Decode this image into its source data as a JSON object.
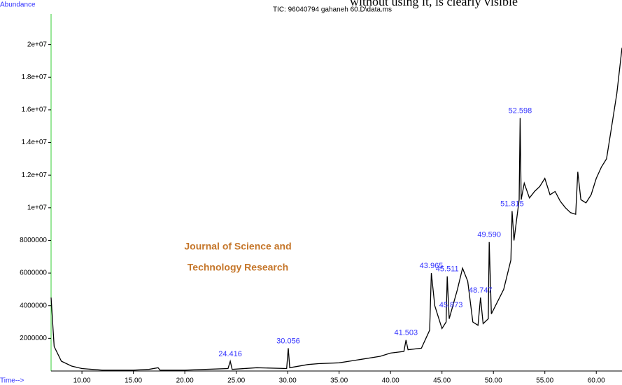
{
  "chart_data": {
    "type": "line",
    "title": "TIC: 96040794 gahaneh 60.D\\data.ms",
    "y_label": "Abundance",
    "x_label": "Time-->",
    "top_text": "without using it, is clearly visible",
    "watermark": [
      "Journal of Science and",
      "Technology Research"
    ],
    "color": "#000000",
    "xlim": [
      7.0,
      62.5
    ],
    "ylim": [
      0,
      22000000
    ],
    "xticks": [
      {
        "value": 10,
        "label": "10.00"
      },
      {
        "value": 15,
        "label": "15.00"
      },
      {
        "value": 20,
        "label": "20.00"
      },
      {
        "value": 25,
        "label": "25.00"
      },
      {
        "value": 30,
        "label": "30.00"
      },
      {
        "value": 35,
        "label": "35.00"
      },
      {
        "value": 40,
        "label": "40.00"
      },
      {
        "value": 45,
        "label": "45.00"
      },
      {
        "value": 50,
        "label": "50.00"
      },
      {
        "value": 55,
        "label": "55.00"
      },
      {
        "value": 60,
        "label": "60.00"
      }
    ],
    "yticks": [
      2000000,
      4000000,
      6000000,
      8000000,
      {
        "value": 10000000,
        "label": "1e+07"
      },
      {
        "value": 12000000,
        "label": "1.2e+07"
      },
      {
        "value": 14000000,
        "label": "1.4e+07"
      },
      {
        "value": 16000000,
        "label": "1.6e+07"
      },
      {
        "value": 18000000,
        "label": "1.8e+07"
      },
      {
        "value": 20000000,
        "label": "2e+07"
      }
    ],
    "x": [
      7.0,
      7.3,
      8,
      9,
      10,
      11,
      12,
      15,
      16.5,
      17.4,
      17.6,
      20,
      22,
      24.2,
      24.416,
      24.6,
      27,
      29.9,
      30.056,
      30.2,
      32,
      33,
      35,
      37,
      39,
      40,
      41.3,
      41.503,
      41.7,
      43,
      43.8,
      43.965,
      44.3,
      45.0,
      45.4,
      45.511,
      45.7,
      46.5,
      47.0,
      47.5,
      48.0,
      48.5,
      48.747,
      49.0,
      49.5,
      49.59,
      49.8,
      51,
      51.7,
      51.815,
      52.0,
      52.5,
      52.598,
      52.7,
      53.0,
      53.5,
      54.0,
      54.5,
      55.0,
      55.5,
      56.0,
      56.5,
      57.0,
      57.5,
      58.0,
      58.2,
      58.5,
      59.0,
      59.5,
      60.0,
      60.5,
      61.0,
      61.5,
      62.0,
      62.5
    ],
    "values": [
      4500000,
      1500000,
      600000,
      300000,
      150000,
      100000,
      50000,
      50000,
      100000,
      200000,
      50000,
      50000,
      100000,
      150000,
      600000,
      100000,
      200000,
      150000,
      1400000,
      200000,
      400000,
      450000,
      500000,
      700000,
      900000,
      1100000,
      1200000,
      1900000,
      1300000,
      1400000,
      2500000,
      6000000,
      4000000,
      2600000,
      3000000,
      5800000,
      3200000,
      5000000,
      6300000,
      5500000,
      3000000,
      2800000,
      4500000,
      2900000,
      3200000,
      7900000,
      3500000,
      5000000,
      6800000,
      9800000,
      8000000,
      10500000,
      15500000,
      10500000,
      11500000,
      10600000,
      11000000,
      11300000,
      11800000,
      10800000,
      11000000,
      10400000,
      10000000,
      9700000,
      9600000,
      12200000,
      10500000,
      10300000,
      10800000,
      11800000,
      12500000,
      13000000,
      15000000,
      17000000,
      19800000
    ],
    "peaks": [
      24.416,
      30.056,
      41.503,
      43.965,
      45.511,
      45.873,
      48.747,
      {
        "value": 49.59,
        "label": "49.590"
      },
      51.815,
      52.598
    ]
  }
}
